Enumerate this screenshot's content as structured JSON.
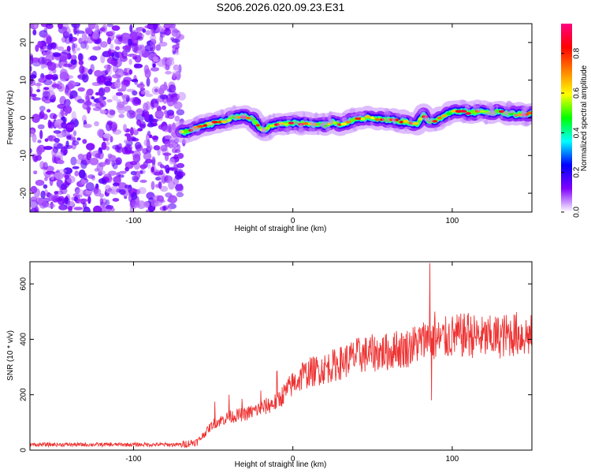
{
  "title": "S206.2026.020.09.23.E31",
  "chart_data": [
    {
      "type": "heatmap",
      "name": "spectrogram",
      "xlabel": "Height of straight line (km)",
      "ylabel": "Frequency (Hz)",
      "xlim": [
        -165,
        150
      ],
      "ylim": [
        -25,
        25
      ],
      "xticks": [
        -100,
        0,
        100
      ],
      "xtick_labels": [
        "-100",
        "0",
        "100"
      ],
      "yticks": [
        -20,
        -10,
        0,
        10,
        20
      ],
      "ytick_labels": [
        "-20",
        "-10",
        "0",
        "10",
        "20"
      ],
      "noise_region_x": [
        -165,
        -70
      ],
      "ridge": {
        "x": [
          -70,
          -60,
          -50,
          -40,
          -35,
          -30,
          -25,
          -20,
          -18,
          -15,
          -10,
          0,
          10,
          20,
          25,
          30,
          35,
          40,
          50,
          60,
          70,
          78,
          82,
          85,
          90,
          95,
          100,
          110,
          120,
          130,
          140,
          150
        ],
        "y": [
          -4,
          -2.5,
          -1.5,
          -0.5,
          0.5,
          0.5,
          -0.5,
          -3,
          -3.5,
          -2,
          -1.5,
          -1.5,
          -1.5,
          -1.8,
          -1.2,
          -1.5,
          -1,
          0,
          0,
          -0.5,
          -1,
          -1.5,
          0.5,
          -1,
          -0.5,
          0.5,
          2,
          1.5,
          1.5,
          1.5,
          1,
          1
        ]
      },
      "colorbar": {
        "label": "Normalized spectral amplitude",
        "range": [
          0,
          0.95
        ],
        "ticks": [
          0.0,
          0.2,
          0.4,
          0.6,
          0.8
        ],
        "tick_labels": [
          "0.0",
          "0.2",
          "0.4",
          "0.6",
          "0.8"
        ],
        "colors": [
          "#ffffff",
          "#8000ff",
          "#0000ff",
          "#00ffff",
          "#00ff00",
          "#ffff00",
          "#ff8000",
          "#ff0000",
          "#ff0080"
        ]
      }
    },
    {
      "type": "line",
      "name": "snr",
      "xlabel": "Height of straight line (km)",
      "ylabel": "SNR (10 * v/v)",
      "xlim": [
        -165,
        150
      ],
      "ylim": [
        0,
        680
      ],
      "xticks": [
        -100,
        0,
        100
      ],
      "xtick_labels": [
        "-100",
        "0",
        "100"
      ],
      "yticks": [
        0,
        200,
        400,
        600
      ],
      "ytick_labels": [
        "0",
        "200",
        "400",
        "600"
      ],
      "color": "#ee3333",
      "trend": {
        "x": [
          -165,
          -70,
          -60,
          -50,
          -40,
          -30,
          -20,
          -10,
          0,
          10,
          20,
          30,
          40,
          50,
          60,
          70,
          80,
          85,
          90,
          100,
          110,
          120,
          130,
          140,
          150
        ],
        "y": [
          20,
          20,
          30,
          95,
          120,
          130,
          150,
          175,
          240,
          280,
          295,
          315,
          340,
          350,
          355,
          365,
          390,
          400,
          395,
          410,
          415,
          405,
          410,
          420,
          410
        ]
      },
      "spikes": [
        {
          "x": -49,
          "y": 175
        },
        {
          "x": -40,
          "y": 200
        },
        {
          "x": -32,
          "y": 185
        },
        {
          "x": -20,
          "y": 215
        },
        {
          "x": -10,
          "y": 285
        },
        {
          "x": 6,
          "y": 315
        },
        {
          "x": 40,
          "y": 400
        },
        {
          "x": 65,
          "y": 430
        },
        {
          "x": 84,
          "y": 430
        },
        {
          "x": 86,
          "y": 675
        },
        {
          "x": 87,
          "y": 180
        },
        {
          "x": 89,
          "y": 500
        },
        {
          "x": 110,
          "y": 495
        },
        {
          "x": 128,
          "y": 475
        }
      ]
    }
  ]
}
